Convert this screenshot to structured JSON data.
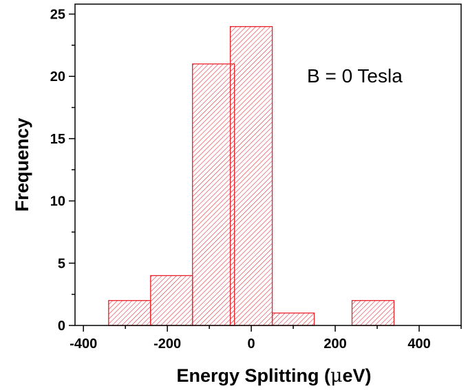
{
  "chart_data": {
    "type": "bar",
    "subtype": "histogram",
    "x": [
      -290,
      -190,
      -90,
      0,
      100,
      290
    ],
    "bin_width": 100,
    "values": [
      2,
      4,
      21,
      24,
      1,
      2
    ],
    "xlabel_parts": [
      "Energy Splitting (",
      "μ",
      "eV)"
    ],
    "ylabel": "Frequency",
    "annotation": "B = 0 Tesla",
    "xlim": [
      -420,
      500
    ],
    "ylim": [
      0,
      25.8
    ],
    "x_ticks": [
      -400,
      -200,
      0,
      200,
      400
    ],
    "x_tick_labels": [
      "-400",
      "-200",
      "0",
      "200",
      "400"
    ],
    "y_ticks": [
      0,
      5,
      10,
      15,
      20,
      25
    ],
    "y_tick_labels": [
      "0",
      "5",
      "10",
      "15",
      "20",
      "25"
    ],
    "grid": false,
    "legend": "none",
    "bar_color": "#e8202a",
    "bar_fill": "diagonal-hatch"
  }
}
